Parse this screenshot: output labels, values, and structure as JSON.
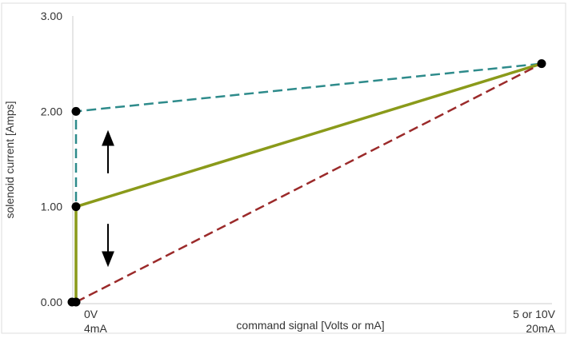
{
  "chart_data": {
    "type": "line",
    "title": "",
    "xlabel": "command signal [Volts or mA]",
    "ylabel": "solenoid current [Amps]",
    "ylim": [
      0,
      3
    ],
    "xlim": [
      0,
      1
    ],
    "y_ticks": [
      "0.00",
      "1.00",
      "2.00",
      "3.00"
    ],
    "x_ticks": [
      {
        "x": 0,
        "line1": "0V",
        "line2": "4mA"
      },
      {
        "x": 1,
        "line1": "5 or 10V",
        "line2": "20mA"
      }
    ],
    "grid": false,
    "series": [
      {
        "x": [
          0,
          0,
          1
        ],
        "y": [
          0,
          2.0,
          2.5
        ],
        "color": "#2e8b8b",
        "dash": "dashed"
      },
      {
        "x": [
          0,
          0,
          1
        ],
        "y": [
          0,
          1.0,
          2.5
        ],
        "color": "#8a9a1a",
        "dash": "solid"
      },
      {
        "x": [
          0,
          1
        ],
        "y": [
          0,
          2.5
        ],
        "color": "#9b2a2a",
        "dash": "dashed"
      }
    ],
    "points": [
      {
        "x": 0,
        "y": 0
      },
      {
        "x": 0,
        "y": 1.0
      },
      {
        "x": 0,
        "y": 2.0
      },
      {
        "x": 1,
        "y": 2.5
      }
    ],
    "annotations": [
      {
        "type": "arrow",
        "direction": "up",
        "x": 0.07,
        "y_from": 1.35,
        "y_to": 1.72
      },
      {
        "type": "arrow",
        "direction": "down",
        "x": 0.07,
        "y_from": 0.82,
        "y_to": 0.45
      }
    ]
  }
}
